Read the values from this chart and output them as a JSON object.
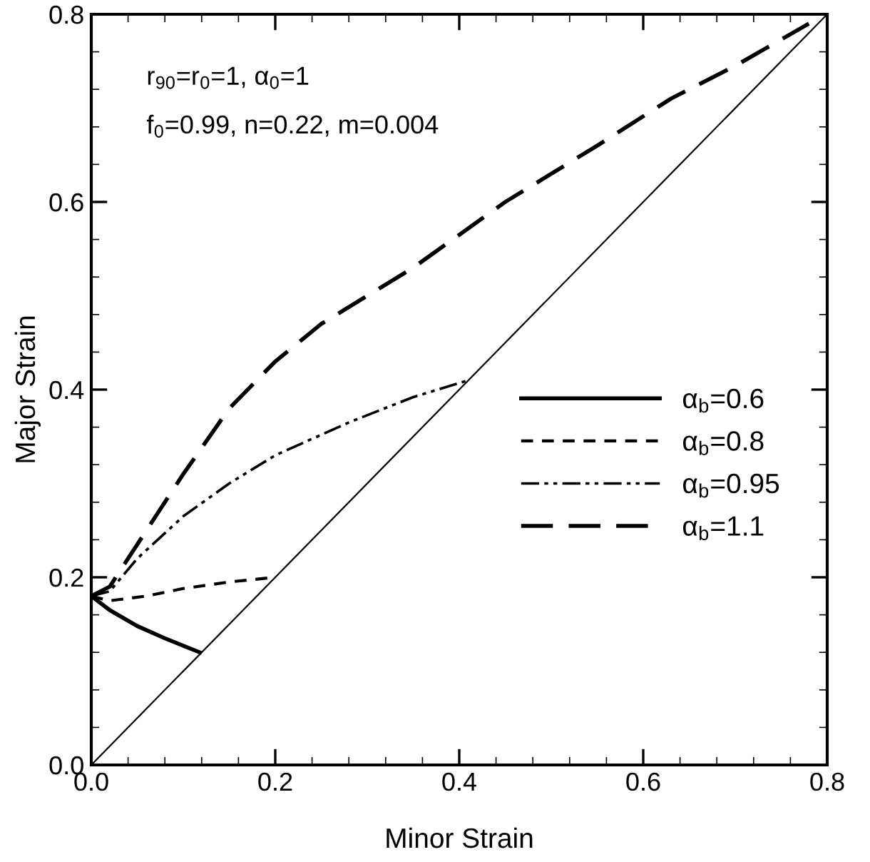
{
  "chart_data": {
    "type": "line",
    "xlabel": "Minor Strain",
    "ylabel": "Major Strain",
    "xlim": [
      0,
      0.8
    ],
    "ylim": [
      0,
      0.8
    ],
    "xticks": [
      {
        "value": 0,
        "label": "0.0"
      },
      0.2,
      0.4,
      0.6,
      0.8
    ],
    "yticks": [
      {
        "value": 0,
        "label": "0.0"
      },
      0.2,
      0.4,
      0.6,
      0.8
    ],
    "grid": false,
    "legend": "right",
    "marker": "none",
    "annotations": [
      "r$_{90}$=r$_{0}$=1, α$_{0}$=1",
      "f$_{0}$=0.99, n=0.22, m=0.004"
    ],
    "series": [
      {
        "name": "α$_{b}$=0.6",
        "color": "#000000",
        "line_style": "solid",
        "x": [
          0,
          0.02,
          0.05,
          0.08,
          0.118
        ],
        "values": [
          0.18,
          0.165,
          0.148,
          0.135,
          0.12
        ]
      },
      {
        "name": "α$_{b}$=0.8",
        "color": "#000000",
        "line_style": "dashed",
        "x": [
          0,
          0.02,
          0.06,
          0.1,
          0.15,
          0.2
        ],
        "values": [
          0.18,
          0.175,
          0.18,
          0.188,
          0.195,
          0.2
        ]
      },
      {
        "name": "α$_{b}$=0.95",
        "color": "#000000",
        "line_style": "dashdotdot",
        "x": [
          0,
          0.02,
          0.05,
          0.1,
          0.15,
          0.2,
          0.28,
          0.35,
          0.41
        ],
        "values": [
          0.18,
          0.185,
          0.22,
          0.265,
          0.3,
          0.33,
          0.365,
          0.392,
          0.41
        ]
      },
      {
        "name": "α$_{b}$=1.1",
        "color": "#000000",
        "line_style": "longdash",
        "x": [
          0,
          0.02,
          0.05,
          0.1,
          0.15,
          0.2,
          0.25,
          0.35,
          0.45,
          0.55,
          0.63,
          0.7,
          0.78
        ],
        "values": [
          0.18,
          0.19,
          0.235,
          0.31,
          0.38,
          0.43,
          0.47,
          0.53,
          0.6,
          0.66,
          0.71,
          0.745,
          0.79
        ]
      },
      {
        "color": "#000000",
        "line_style": "solid",
        "x": [
          0,
          0.8
        ],
        "values": [
          0,
          0.8
        ]
      }
    ]
  }
}
